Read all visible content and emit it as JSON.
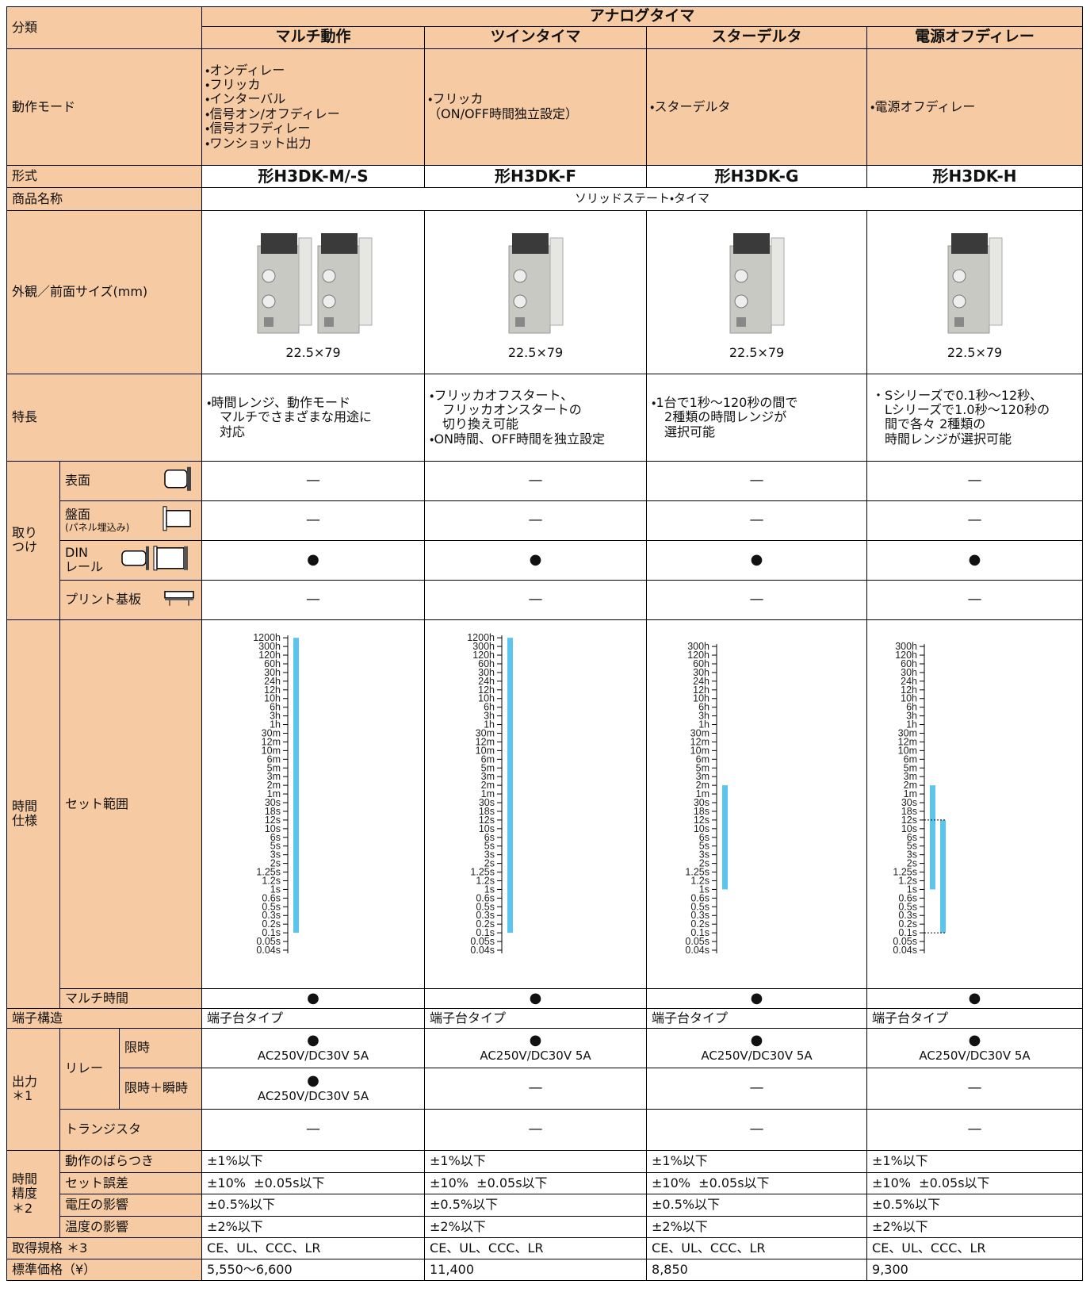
{
  "header": {
    "category": "分類",
    "group": "アナログタイマ",
    "products": [
      "マルチ動作",
      "ツインタイマ",
      "スターデルタ",
      "電源オフディレー"
    ]
  },
  "operation_mode": {
    "label": "動作モード",
    "values": [
      "・オンディレー\n・フリッカ\n・インターバル\n・信号オン/オフディレー\n・信号オフディレー\n・ワンショット出力",
      "・フリッカ\n（ON/OFF時間独立設定）",
      "・スターデルタ",
      "・電源オフディレー"
    ]
  },
  "model": {
    "label": "形式",
    "values": [
      "形H3DK-M/-S",
      "形H3DK-F",
      "形H3DK-G",
      "形H3DK-H"
    ]
  },
  "product_name": {
    "label": "商品名称",
    "value": "ソリッドステート・タイマ"
  },
  "appearance": {
    "label": "外観／前面サイズ(mm)",
    "values": [
      "22.5×79",
      "22.5×79",
      "22.5×79",
      "22.5×79"
    ]
  },
  "features": {
    "label": "特長",
    "values": [
      "・時間レンジ、動作モード\n　マルチでさまざまな用途に\n　対応",
      "・フリッカオフスタート、\n　フリッカオンスタートの\n　切り換え可能\n・ON時間、OFF時間を独立設定",
      "・1台で1秒～120秒の間で\n　2種類の時間レンジが\n　選択可能",
      "・Sシリーズで0.1秒～12秒、\n　Lシリーズで1.0秒～120秒の\n　間で各々 2種類の\n　時間レンジが選択可能"
    ]
  },
  "mounting": {
    "label": "取り\nつけ",
    "rows": [
      {
        "label": "表面",
        "values": [
          "—",
          "—",
          "—",
          "—"
        ]
      },
      {
        "label": "盤面",
        "note": "(パネル埋込み)",
        "values": [
          "—",
          "—",
          "—",
          "—"
        ]
      },
      {
        "label": "DIN\nレール",
        "values": [
          "●",
          "●",
          "●",
          "●"
        ]
      },
      {
        "label": "プリント基板",
        "values": [
          "—",
          "—",
          "—",
          "—"
        ]
      }
    ]
  },
  "time_spec": {
    "label": "時間\n仕様",
    "set_range": {
      "label": "セット範囲",
      "columns": [
        {
          "scale": [
            "1200h",
            "300h",
            "120h",
            "60h",
            "30h",
            "24h",
            "12h",
            "10h",
            "6h",
            "3h",
            "1h",
            "30m",
            "12m",
            "10m",
            "6m",
            "5m",
            "3m",
            "2m",
            "1m",
            "30s",
            "18s",
            "12s",
            "10s",
            "6s",
            "5s",
            "3s",
            "2s",
            "1.25s",
            "1.2s",
            "1s",
            "0.6s",
            "0.5s",
            "0.3s",
            "0.2s",
            "0.1s",
            "0.05s",
            "0.04s"
          ],
          "ranges": [
            {
              "from": "0.1s",
              "to": "1200h"
            }
          ]
        },
        {
          "scale": [
            "1200h",
            "300h",
            "120h",
            "60h",
            "30h",
            "24h",
            "12h",
            "10h",
            "6h",
            "3h",
            "1h",
            "30m",
            "12m",
            "10m",
            "6m",
            "5m",
            "3m",
            "2m",
            "1m",
            "30s",
            "18s",
            "12s",
            "10s",
            "6s",
            "5s",
            "3s",
            "2s",
            "1.25s",
            "1.2s",
            "1s",
            "0.6s",
            "0.5s",
            "0.3s",
            "0.2s",
            "0.1s",
            "0.05s",
            "0.04s"
          ],
          "ranges": [
            {
              "from": "0.1s",
              "to": "1200h"
            }
          ]
        },
        {
          "scale": [
            "300h",
            "120h",
            "60h",
            "30h",
            "24h",
            "12h",
            "10h",
            "6h",
            "3h",
            "1h",
            "30m",
            "12m",
            "10m",
            "6m",
            "5m",
            "3m",
            "2m",
            "1m",
            "30s",
            "18s",
            "12s",
            "10s",
            "6s",
            "5s",
            "3s",
            "2s",
            "1.25s",
            "1.2s",
            "1s",
            "0.6s",
            "0.5s",
            "0.3s",
            "0.2s",
            "0.1s",
            "0.05s",
            "0.04s"
          ],
          "ranges": [
            {
              "from": "1s",
              "to": "2m"
            }
          ]
        },
        {
          "scale": [
            "300h",
            "120h",
            "60h",
            "30h",
            "24h",
            "12h",
            "10h",
            "6h",
            "3h",
            "1h",
            "30m",
            "12m",
            "10m",
            "6m",
            "5m",
            "3m",
            "2m",
            "1m",
            "30s",
            "18s",
            "12s",
            "10s",
            "6s",
            "5s",
            "3s",
            "2s",
            "1.25s",
            "1.2s",
            "1s",
            "0.6s",
            "0.5s",
            "0.3s",
            "0.2s",
            "0.1s",
            "0.05s",
            "0.04s"
          ],
          "ranges": [
            {
              "from": "1s",
              "to": "2m"
            },
            {
              "from": "0.1s",
              "to": "12s"
            }
          ]
        }
      ]
    },
    "multi_time": {
      "label": "マルチ時間",
      "values": [
        "●",
        "●",
        "●",
        "●"
      ]
    }
  },
  "terminal": {
    "label": "端子構造",
    "values": [
      "端子台タイプ",
      "端子台タイプ",
      "端子台タイプ",
      "端子台タイプ"
    ]
  },
  "output": {
    "label": "出力\n＊1",
    "relay": {
      "label": "リレー",
      "timed": {
        "label": "限時",
        "values": [
          {
            "mark": "●",
            "spec": "AC250V/DC30V 5A"
          },
          {
            "mark": "●",
            "spec": "AC250V/DC30V 5A"
          },
          {
            "mark": "●",
            "spec": "AC250V/DC30V 5A"
          },
          {
            "mark": "●",
            "spec": "AC250V/DC30V 5A"
          }
        ]
      },
      "timed_instant": {
        "label": "限時＋瞬時",
        "values": [
          {
            "mark": "●",
            "spec": "AC250V/DC30V 5A"
          },
          {
            "mark": "—"
          },
          {
            "mark": "—"
          },
          {
            "mark": "—"
          }
        ]
      }
    },
    "transistor": {
      "label": "トランジスタ",
      "values": [
        "—",
        "—",
        "—",
        "—"
      ]
    }
  },
  "accuracy": {
    "label": "時間\n精度\n＊2",
    "rows": [
      {
        "label": "動作のばらつき",
        "values": [
          "±1%以下",
          "±1%以下",
          "±1%以下",
          "±1%以下"
        ]
      },
      {
        "label": "セット誤差",
        "values": [
          "±10%  ±0.05s以下",
          "±10%  ±0.05s以下",
          "±10%  ±0.05s以下",
          "±10%  ±0.05s以下"
        ]
      },
      {
        "label": "電圧の影響",
        "values": [
          "±0.5%以下",
          "±0.5%以下",
          "±0.5%以下",
          "±0.5%以下"
        ]
      },
      {
        "label": "温度の影響",
        "values": [
          "±2%以下",
          "±2%以下",
          "±2%以下",
          "±2%以下"
        ]
      }
    ]
  },
  "standards": {
    "label": "取得規格 ＊3",
    "values": [
      "CE、UL、CCC、LR",
      "CE、UL、CCC、LR",
      "CE、UL、CCC、LR",
      "CE、UL、CCC、LR"
    ]
  },
  "price": {
    "label": "標準価格（¥）",
    "values": [
      "5,550～6,600",
      "11,400",
      "8,850",
      "9,300"
    ]
  }
}
